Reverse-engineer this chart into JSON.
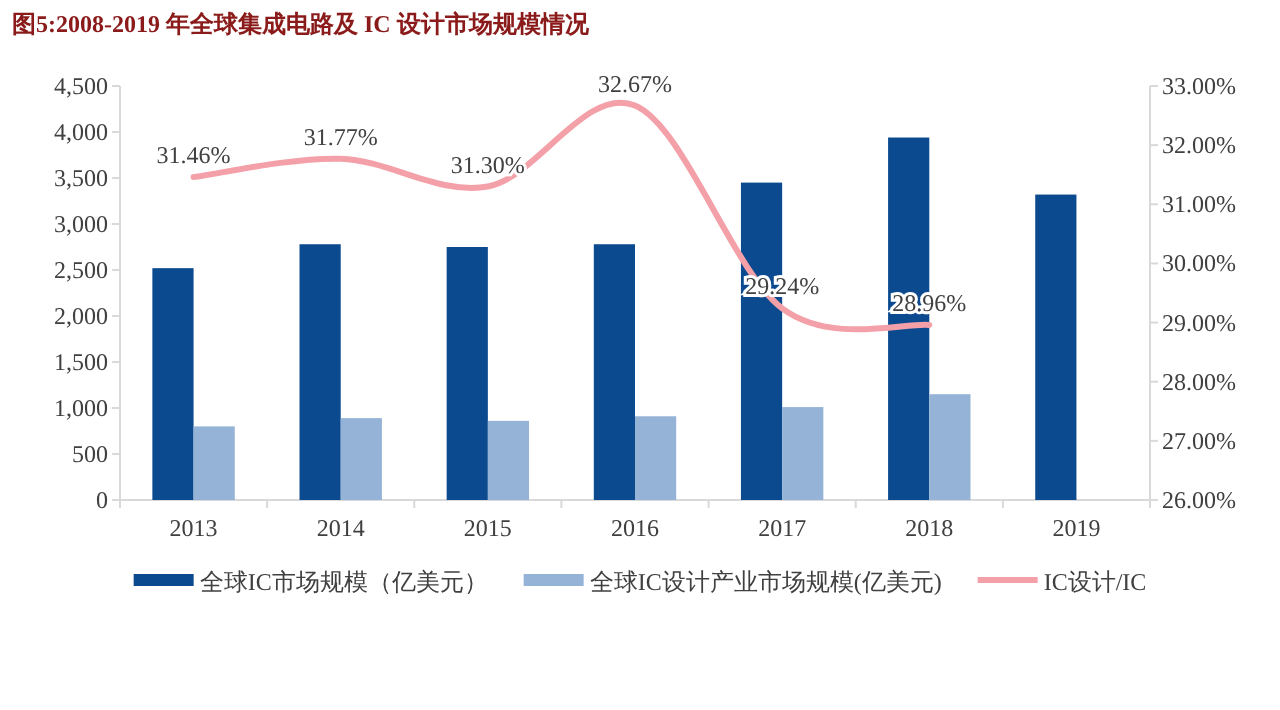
{
  "chart_data": {
    "type": "bar",
    "title": "图5:2008-2019 年全球集成电路及 IC 设计市场规模情况",
    "categories": [
      "2013",
      "2014",
      "2015",
      "2016",
      "2017",
      "2018",
      "2019"
    ],
    "series": [
      {
        "name": "全球IC市场规模（亿美元）",
        "color": "#0b4a8f",
        "values": [
          2520,
          2780,
          2750,
          2780,
          3450,
          3940,
          3320
        ]
      },
      {
        "name": "全球IC设计产业市场规模(亿美元)",
        "color": "#95b3d7",
        "values": [
          800,
          890,
          860,
          910,
          1010,
          1150,
          null
        ]
      },
      {
        "name": "IC设计/IC",
        "type": "line",
        "axis": "y2",
        "color": "#f4a0a8",
        "values": [
          31.46,
          31.77,
          31.3,
          32.67,
          29.24,
          28.96,
          null
        ],
        "value_labels": [
          "31.46%",
          "31.77%",
          "31.30%",
          "32.67%",
          "29.24%",
          "28.96%",
          null
        ]
      }
    ],
    "ylim": [
      0,
      4500
    ],
    "yticks": [
      0,
      500,
      {
        "value": 1000,
        "label": "1,000"
      },
      {
        "value": 1500,
        "label": "1,500"
      },
      {
        "value": 2000,
        "label": "2,000"
      },
      {
        "value": 2500,
        "label": "2,500"
      },
      {
        "value": 3000,
        "label": "3,000"
      },
      {
        "value": 3500,
        "label": "3,500"
      },
      {
        "value": 4000,
        "label": "4,000"
      },
      {
        "value": 4500,
        "label": "4,500"
      }
    ],
    "y2lim": [
      26,
      33
    ],
    "y2ticks": [
      {
        "value": 26,
        "label": "26.00%"
      },
      {
        "value": 27,
        "label": "27.00%"
      },
      {
        "value": 28,
        "label": "28.00%"
      },
      {
        "value": 29,
        "label": "29.00%"
      },
      {
        "value": 30,
        "label": "30.00%"
      },
      {
        "value": 31,
        "label": "31.00%"
      },
      {
        "value": 32,
        "label": "32.00%"
      },
      {
        "value": 33,
        "label": "33.00%"
      }
    ],
    "grid": false,
    "legend": "bottom"
  }
}
